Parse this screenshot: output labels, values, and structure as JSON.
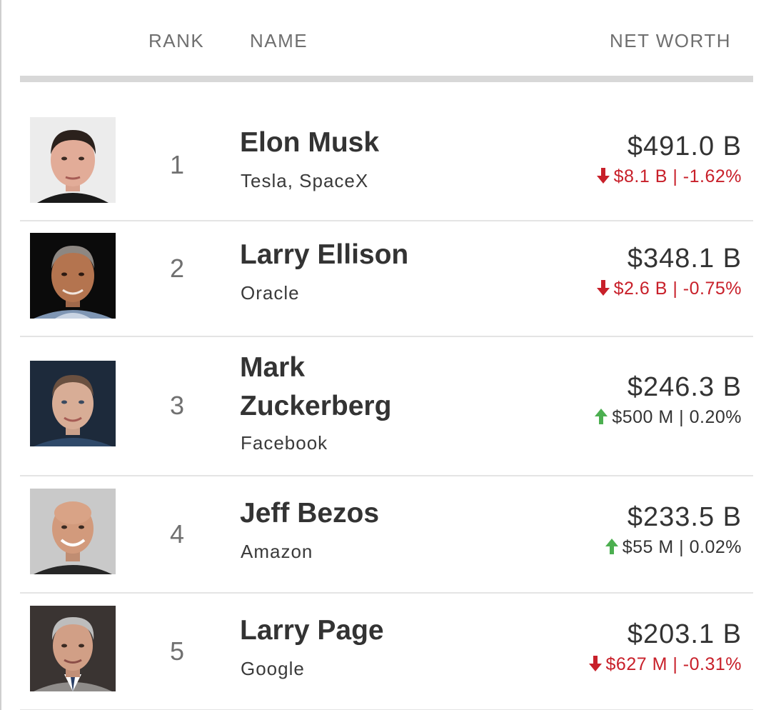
{
  "header": {
    "rank": "RANK",
    "name": "NAME",
    "net_worth": "NET WORTH"
  },
  "colors": {
    "down": "#c8202a",
    "up_arrow": "#4caf50",
    "text": "#333333",
    "muted": "#707070"
  },
  "people": [
    {
      "rank": "1",
      "name": "Elon Musk",
      "company": "Tesla, SpaceX",
      "worth": "$491.0 B",
      "change": "$8.1 B | -1.62%",
      "direction": "down",
      "icon": "arrow-down-icon"
    },
    {
      "rank": "2",
      "name": "Larry Ellison",
      "company": "Oracle",
      "worth": "$348.1 B",
      "change": "$2.6 B | -0.75%",
      "direction": "down",
      "icon": "arrow-down-icon"
    },
    {
      "rank": "3",
      "name": "Mark Zuckerberg",
      "company": "Facebook",
      "worth": "$246.3 B",
      "change": "$500 M | 0.20%",
      "direction": "up",
      "icon": "arrow-up-icon"
    },
    {
      "rank": "4",
      "name": "Jeff Bezos",
      "company": "Amazon",
      "worth": "$233.5 B",
      "change": "$55 M | 0.02%",
      "direction": "up",
      "icon": "arrow-up-icon"
    },
    {
      "rank": "5",
      "name": "Larry Page",
      "company": "Google",
      "worth": "$203.1 B",
      "change": "$627 M | -0.31%",
      "direction": "down",
      "icon": "arrow-down-icon"
    }
  ]
}
